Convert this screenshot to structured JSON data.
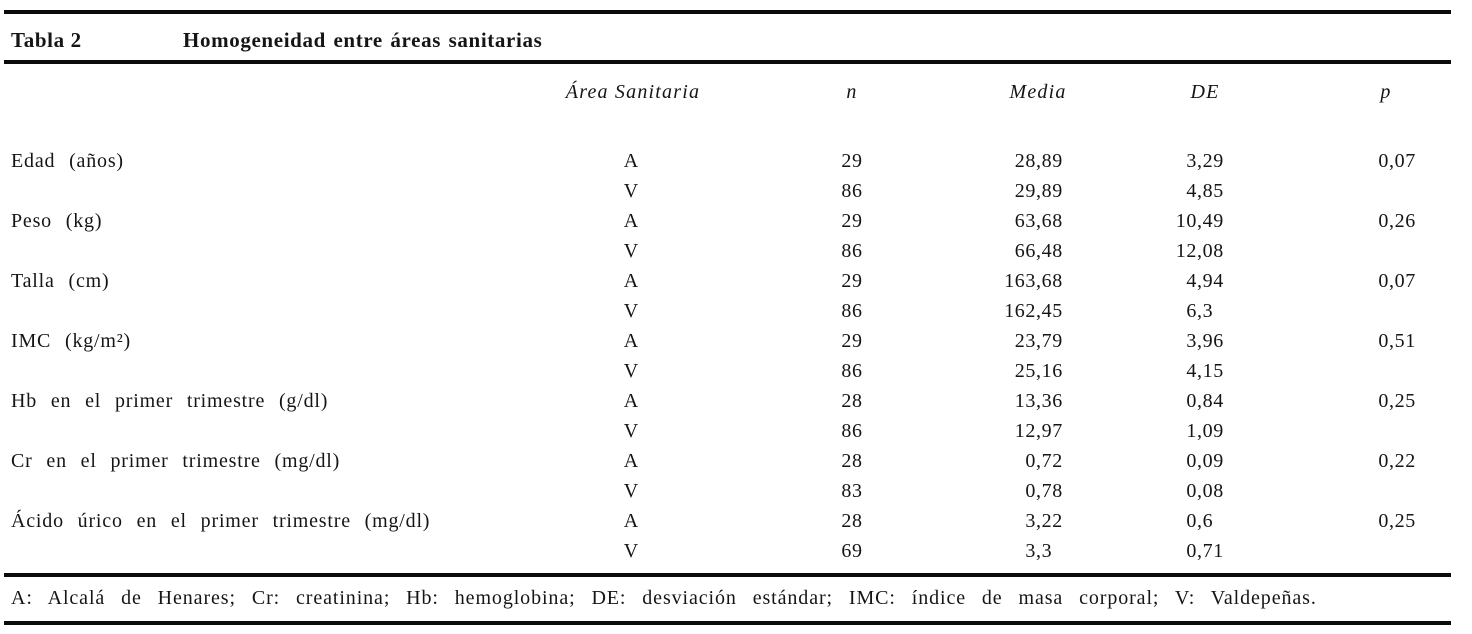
{
  "document": {
    "label": "Tabla 2",
    "title": "Homogeneidad entre áreas sanitarias",
    "columns": {
      "variable": "",
      "area": "Área Sanitaria",
      "n": "n",
      "media": "Media",
      "de": "DE",
      "p": "p"
    },
    "rows": [
      {
        "variable": "Edad (años)",
        "entries": [
          {
            "area": "A",
            "n": "29",
            "media": "28,89",
            "de": "3,29",
            "p": "0,07"
          },
          {
            "area": "V",
            "n": "86",
            "media": "29,89",
            "de": "4,85",
            "p": ""
          }
        ]
      },
      {
        "variable": "Peso (kg)",
        "entries": [
          {
            "area": "A",
            "n": "29",
            "media": "63,68",
            "de": "10,49",
            "p": "0,26"
          },
          {
            "area": "V",
            "n": "86",
            "media": "66,48",
            "de": "12,08",
            "p": ""
          }
        ]
      },
      {
        "variable": "Talla (cm)",
        "entries": [
          {
            "area": "A",
            "n": "29",
            "media": "163,68",
            "de": "4,94",
            "p": "0,07"
          },
          {
            "area": "V",
            "n": "86",
            "media": "162,45",
            "de": "6,3",
            "p": ""
          }
        ]
      },
      {
        "variable": "IMC (kg/m²)",
        "entries": [
          {
            "area": "A",
            "n": "29",
            "media": "23,79",
            "de": "3,96",
            "p": "0,51"
          },
          {
            "area": "V",
            "n": "86",
            "media": "25,16",
            "de": "4,15",
            "p": ""
          }
        ]
      },
      {
        "variable": "Hb en el primer trimestre (g/dl)",
        "entries": [
          {
            "area": "A",
            "n": "28",
            "media": "13,36",
            "de": "0,84",
            "p": "0,25"
          },
          {
            "area": "V",
            "n": "86",
            "media": "12,97",
            "de": "1,09",
            "p": ""
          }
        ]
      },
      {
        "variable": "Cr en el primer trimestre (mg/dl)",
        "entries": [
          {
            "area": "A",
            "n": "28",
            "media": "0,72",
            "de": "0,09",
            "p": "0,22"
          },
          {
            "area": "V",
            "n": "83",
            "media": "0,78",
            "de": "0,08",
            "p": ""
          }
        ]
      },
      {
        "variable": "Ácido úrico en el primer trimestre (mg/dl)",
        "entries": [
          {
            "area": "A",
            "n": "28",
            "media": "3,22",
            "de": "0,6",
            "p": "0,25"
          },
          {
            "area": "V",
            "n": "69",
            "media": "3,3",
            "de": "0,71",
            "p": ""
          }
        ]
      }
    ],
    "footnote": "A: Alcalá de Henares; Cr: creatinina; Hb: hemoglobina; DE: desviación estándar; IMC: índice de masa corporal; V: Valdepeñas.",
    "colors": {
      "text": "#151515",
      "rule": "#0b0b0b",
      "background": "#ffffff"
    }
  }
}
